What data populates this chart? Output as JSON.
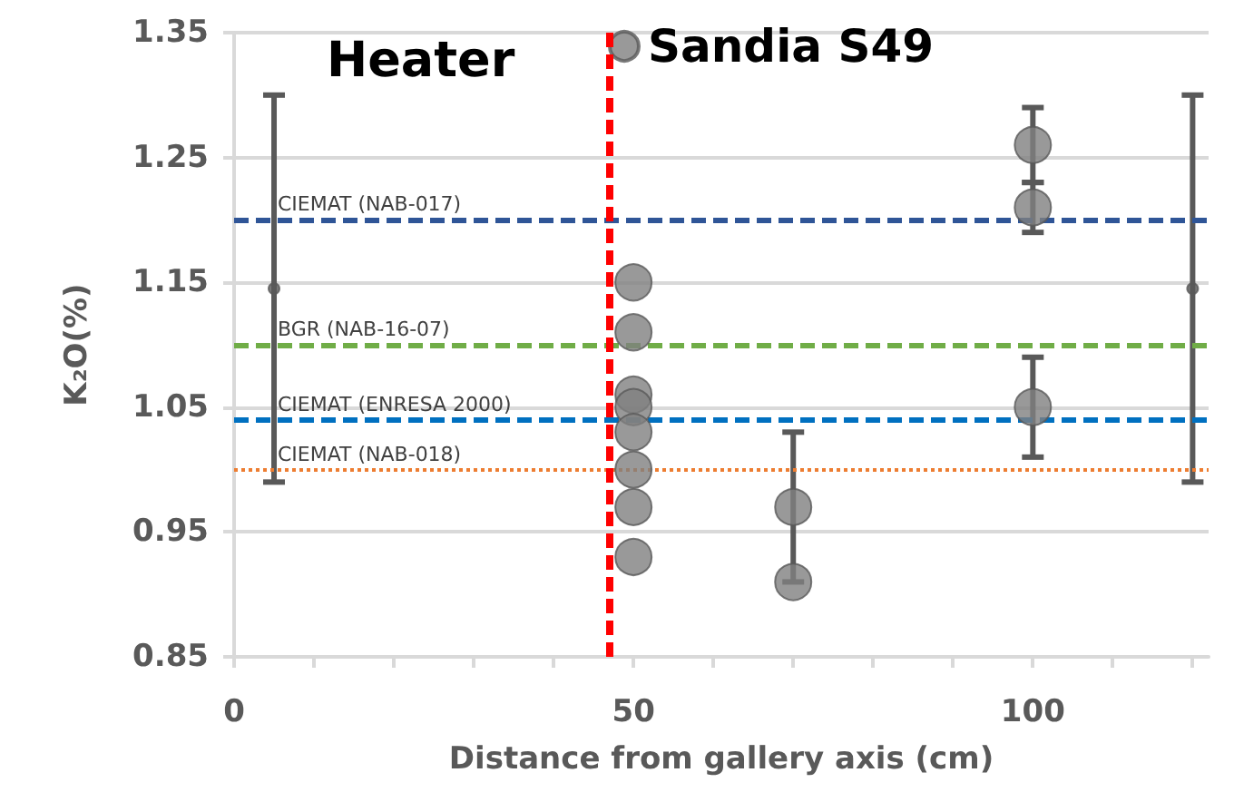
{
  "chart_data": {
    "type": "scatter",
    "xlabel": "Distance from gallery axis (cm)",
    "ylabel": "K₂O(%)",
    "annotations": [
      "Heater"
    ],
    "xlim": [
      0,
      122
    ],
    "xticks": [
      0,
      {
        "value": 10,
        "label": null
      },
      {
        "value": 20,
        "label": null
      },
      {
        "value": 30,
        "label": null
      },
      {
        "value": 40,
        "label": null
      },
      50,
      {
        "value": 60,
        "label": null
      },
      {
        "value": 70,
        "label": null
      },
      {
        "value": 80,
        "label": null
      },
      {
        "value": 90,
        "label": null
      },
      100,
      {
        "value": 110,
        "label": null
      },
      {
        "value": 120,
        "label": null
      }
    ],
    "ylim": [
      0.85,
      1.35
    ],
    "yticks": [
      0.85,
      0.95,
      1.05,
      1.15,
      1.25,
      1.35
    ],
    "grid": "y",
    "legend": "top",
    "marker": "circle",
    "series": [
      {
        "name": "Sandia S49",
        "color": "#7f7f7f",
        "x": [
          50,
          50,
          50,
          50,
          50,
          50,
          50,
          50,
          70,
          70,
          100,
          100,
          100
        ],
        "values": [
          1.15,
          1.11,
          1.06,
          1.05,
          1.03,
          1.0,
          0.97,
          0.93,
          0.97,
          0.91,
          1.26,
          1.21,
          1.05
        ],
        "errors": [
          null,
          null,
          null,
          null,
          null,
          null,
          null,
          null,
          0.06,
          null,
          0.03,
          0.02,
          0.04
        ]
      },
      {
        "type": "scatter",
        "color": "#595959",
        "x": [
          5,
          120
        ],
        "values": [
          1.145,
          1.145
        ],
        "errors": [
          0.155,
          0.155
        ]
      }
    ],
    "ref_lines": [
      {
        "axis": "y",
        "value": 1.2,
        "label": "CIEMAT (NAB-017)",
        "color": "#2f5597",
        "line_style": "dashed"
      },
      {
        "axis": "y",
        "value": 1.1,
        "label": "BGR (NAB-16-07)",
        "color": "#70ad47",
        "line_style": "dashed"
      },
      {
        "axis": "y",
        "value": 1.04,
        "label": "CIEMAT (ENRESA 2000)",
        "color": "#0070c0",
        "line_style": "dashed"
      },
      {
        "axis": "y",
        "value": 1.0,
        "label": "CIEMAT (NAB-018)",
        "color": "#ed7d31",
        "line_style": "dotted"
      },
      {
        "axis": "x",
        "value": 47,
        "label": null,
        "color": "#ff0000",
        "line_style": "dashed"
      }
    ]
  }
}
